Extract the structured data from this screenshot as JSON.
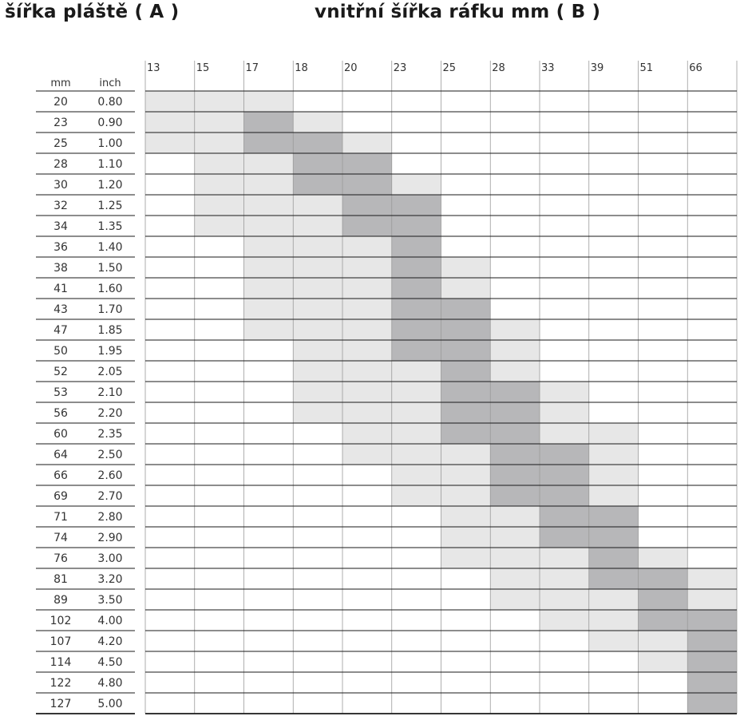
{
  "tire_title": "šířka pláště ( A )",
  "rim_title": "vnitřní šířka ráfku mm ( B )",
  "colors": {
    "light": "#e7e7e7",
    "dark": "#b7b7b9",
    "line": "#1a1a1a",
    "vline": "#9a9a9a"
  },
  "chart_data": {
    "type": "table",
    "row_headers": [
      "mm",
      "inch"
    ],
    "columns": [
      "13",
      "15",
      "17",
      "18",
      "20",
      "23",
      "25",
      "28",
      "33",
      "39",
      "51",
      "66"
    ],
    "rows": [
      {
        "mm": "20",
        "inch": "0.80",
        "light": [
          0,
          2
        ],
        "dark": null
      },
      {
        "mm": "23",
        "inch": "0.90",
        "light": [
          0,
          3
        ],
        "dark": [
          2,
          2
        ]
      },
      {
        "mm": "25",
        "inch": "1.00",
        "light": [
          0,
          4
        ],
        "dark": [
          2,
          3
        ]
      },
      {
        "mm": "28",
        "inch": "1.10",
        "light": [
          1,
          4
        ],
        "dark": [
          3,
          4
        ]
      },
      {
        "mm": "30",
        "inch": "1.20",
        "light": [
          1,
          5
        ],
        "dark": [
          3,
          4
        ]
      },
      {
        "mm": "32",
        "inch": "1.25",
        "light": [
          1,
          5
        ],
        "dark": [
          4,
          5
        ]
      },
      {
        "mm": "34",
        "inch": "1.35",
        "light": [
          1,
          5
        ],
        "dark": [
          4,
          5
        ]
      },
      {
        "mm": "36",
        "inch": "1.40",
        "light": [
          2,
          5
        ],
        "dark": [
          5,
          5
        ]
      },
      {
        "mm": "38",
        "inch": "1.50",
        "light": [
          2,
          6
        ],
        "dark": [
          5,
          5
        ]
      },
      {
        "mm": "41",
        "inch": "1.60",
        "light": [
          2,
          6
        ],
        "dark": [
          5,
          5
        ]
      },
      {
        "mm": "43",
        "inch": "1.70",
        "light": [
          2,
          6
        ],
        "dark": [
          5,
          6
        ]
      },
      {
        "mm": "47",
        "inch": "1.85",
        "light": [
          2,
          7
        ],
        "dark": [
          5,
          6
        ]
      },
      {
        "mm": "50",
        "inch": "1.95",
        "light": [
          3,
          7
        ],
        "dark": [
          5,
          6
        ]
      },
      {
        "mm": "52",
        "inch": "2.05",
        "light": [
          3,
          7
        ],
        "dark": [
          6,
          6
        ]
      },
      {
        "mm": "53",
        "inch": "2.10",
        "light": [
          3,
          8
        ],
        "dark": [
          6,
          7
        ]
      },
      {
        "mm": "56",
        "inch": "2.20",
        "light": [
          3,
          8
        ],
        "dark": [
          6,
          7
        ]
      },
      {
        "mm": "60",
        "inch": "2.35",
        "light": [
          4,
          9
        ],
        "dark": [
          6,
          7
        ]
      },
      {
        "mm": "64",
        "inch": "2.50",
        "light": [
          4,
          9
        ],
        "dark": [
          7,
          8
        ]
      },
      {
        "mm": "66",
        "inch": "2.60",
        "light": [
          5,
          9
        ],
        "dark": [
          7,
          8
        ]
      },
      {
        "mm": "69",
        "inch": "2.70",
        "light": [
          5,
          9
        ],
        "dark": [
          7,
          8
        ]
      },
      {
        "mm": "71",
        "inch": "2.80",
        "light": [
          6,
          9
        ],
        "dark": [
          8,
          9
        ]
      },
      {
        "mm": "74",
        "inch": "2.90",
        "light": [
          6,
          9
        ],
        "dark": [
          8,
          9
        ]
      },
      {
        "mm": "76",
        "inch": "3.00",
        "light": [
          6,
          10
        ],
        "dark": [
          9,
          9
        ]
      },
      {
        "mm": "81",
        "inch": "3.20",
        "light": [
          7,
          11
        ],
        "dark": [
          9,
          10
        ]
      },
      {
        "mm": "89",
        "inch": "3.50",
        "light": [
          7,
          11
        ],
        "dark": [
          10,
          10
        ]
      },
      {
        "mm": "102",
        "inch": "4.00",
        "light": [
          8,
          11
        ],
        "dark": [
          10,
          11
        ]
      },
      {
        "mm": "107",
        "inch": "4.20",
        "light": [
          9,
          11
        ],
        "dark": [
          11,
          11
        ]
      },
      {
        "mm": "114",
        "inch": "4.50",
        "light": [
          10,
          11
        ],
        "dark": [
          11,
          11
        ]
      },
      {
        "mm": "122",
        "inch": "4.80",
        "light": [
          11,
          11
        ],
        "dark": [
          11,
          11
        ]
      },
      {
        "mm": "127",
        "inch": "5.00",
        "light": [
          11,
          11
        ],
        "dark": [
          11,
          11
        ]
      }
    ]
  }
}
